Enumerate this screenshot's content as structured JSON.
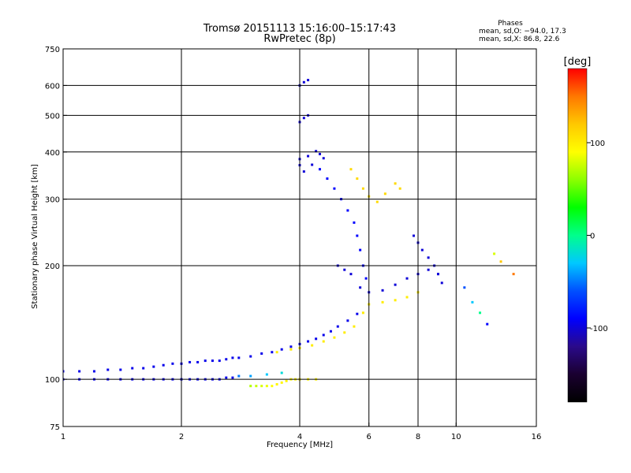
{
  "chart_data": {
    "type": "scatter",
    "title": "Tromsø 20151113 15:16:00–15:17:43",
    "subtitle": "RwPretec (8p)",
    "xlabel": "Frequency [MHz]",
    "ylabel": "Stationary phase Virtual Height [km]",
    "x_scale": "log",
    "y_scale": "log",
    "xlim": [
      1,
      16
    ],
    "ylim": [
      75,
      750
    ],
    "x_ticks": [
      1,
      2,
      4,
      6,
      8,
      10,
      16
    ],
    "x_tick_labels": [
      "1",
      "2",
      "4",
      "6",
      "8",
      "10",
      "16"
    ],
    "y_ticks": [
      75,
      100,
      200,
      300,
      400,
      500,
      600,
      750
    ],
    "y_tick_labels": [
      "75",
      "100",
      "200",
      "300",
      "400",
      "500",
      "600",
      "750"
    ],
    "x_gridlines": [
      2,
      4,
      6,
      8,
      10
    ],
    "y_gridlines": [
      100,
      200,
      300,
      400,
      500,
      600
    ],
    "grid": true,
    "info": {
      "header": "Phases",
      "line1": "mean, sd,O: −94.0, 17.3",
      "line2": "mean, sd,X:  86.8, 22.6"
    },
    "colorbar": {
      "label": "[deg]",
      "range": [
        -180,
        180
      ],
      "ticks": [
        100,
        0,
        -100
      ],
      "tick_labels": [
        "100",
        "0",
        "-100"
      ],
      "colormap": "rainbow",
      "stops": [
        "#000000",
        "#1a0030",
        "#2a0a8a",
        "#0000ff",
        "#0050ff",
        "#00c8ff",
        "#00ff8c",
        "#00ff00",
        "#8cff00",
        "#ffff00",
        "#ffc800",
        "#ff7800",
        "#ff0000"
      ]
    },
    "series": [
      {
        "points": [
          [
            1.0,
            105,
            -95
          ],
          [
            1.1,
            105,
            -95
          ],
          [
            1.2,
            105,
            -95
          ],
          [
            1.3,
            106,
            -95
          ],
          [
            1.4,
            106,
            -95
          ],
          [
            1.5,
            107,
            -95
          ],
          [
            1.6,
            107,
            -95
          ],
          [
            1.7,
            108,
            -95
          ],
          [
            1.8,
            109,
            -95
          ],
          [
            1.9,
            110,
            -95
          ],
          [
            2.0,
            110,
            -95
          ],
          [
            2.1,
            111,
            -95
          ],
          [
            2.2,
            111,
            -95
          ],
          [
            2.3,
            112,
            -95
          ],
          [
            2.4,
            112,
            -95
          ],
          [
            2.5,
            112,
            -95
          ],
          [
            2.6,
            113,
            -95
          ],
          [
            2.7,
            114,
            -95
          ],
          [
            2.8,
            114,
            -95
          ],
          [
            3.0,
            115,
            -95
          ],
          [
            3.2,
            117,
            -95
          ],
          [
            3.4,
            118,
            -95
          ],
          [
            3.6,
            120,
            -95
          ],
          [
            3.8,
            122,
            -95
          ],
          [
            4.0,
            124,
            -95
          ],
          [
            4.2,
            126,
            -95
          ],
          [
            4.4,
            128,
            -95
          ],
          [
            4.6,
            131,
            -95
          ],
          [
            4.8,
            134,
            -95
          ],
          [
            5.0,
            138,
            -95
          ],
          [
            5.3,
            143,
            -95
          ],
          [
            5.6,
            149,
            -95
          ]
        ]
      },
      {
        "points": [
          [
            1.0,
            100,
            -95
          ],
          [
            1.1,
            100,
            -95
          ],
          [
            1.2,
            100,
            -95
          ],
          [
            1.3,
            100,
            -95
          ],
          [
            1.4,
            100,
            -95
          ],
          [
            1.5,
            100,
            -95
          ],
          [
            1.6,
            100,
            -95
          ],
          [
            1.7,
            100,
            -95
          ],
          [
            1.8,
            100,
            -95
          ],
          [
            1.9,
            100,
            -95
          ],
          [
            2.0,
            100,
            -95
          ],
          [
            2.1,
            100,
            -95
          ],
          [
            2.2,
            100,
            -95
          ],
          [
            2.3,
            100,
            -95
          ],
          [
            2.4,
            100,
            -95
          ],
          [
            2.5,
            100,
            -95
          ],
          [
            2.6,
            101,
            -95
          ],
          [
            2.7,
            101,
            -95
          ]
        ]
      },
      {
        "points": [
          [
            2.8,
            102,
            -50
          ],
          [
            3.0,
            102,
            -40
          ],
          [
            3.3,
            103,
            -30
          ],
          [
            3.6,
            104,
            -20
          ]
        ]
      },
      {
        "points": [
          [
            3.0,
            96,
            70
          ],
          [
            3.1,
            96,
            75
          ],
          [
            3.2,
            96,
            80
          ],
          [
            3.3,
            96,
            85
          ],
          [
            3.4,
            96,
            90
          ],
          [
            3.5,
            97,
            95
          ],
          [
            3.6,
            98,
            95
          ],
          [
            3.7,
            99,
            95
          ],
          [
            3.8,
            100,
            95
          ],
          [
            3.9,
            100,
            95
          ],
          [
            4.0,
            100,
            95
          ],
          [
            4.2,
            100,
            95
          ],
          [
            4.4,
            100,
            95
          ]
        ]
      },
      {
        "points": [
          [
            3.5,
            118,
            100
          ],
          [
            3.8,
            120,
            100
          ],
          [
            4.0,
            121,
            100
          ],
          [
            4.3,
            123,
            100
          ],
          [
            4.6,
            126,
            100
          ],
          [
            4.9,
            129,
            100
          ],
          [
            5.2,
            133,
            100
          ],
          [
            5.5,
            138,
            100
          ],
          [
            5.8,
            150,
            100
          ],
          [
            6.0,
            158,
            100
          ],
          [
            6.5,
            160,
            100
          ],
          [
            7.0,
            162,
            100
          ],
          [
            7.5,
            165,
            100
          ],
          [
            8.0,
            170,
            100
          ]
        ]
      },
      {
        "points": [
          [
            4.0,
            369,
            -100
          ],
          [
            4.0,
            383,
            -100
          ],
          [
            4.1,
            355,
            -100
          ],
          [
            4.2,
            390,
            -100
          ],
          [
            4.3,
            370,
            -100
          ],
          [
            4.4,
            402,
            -100
          ],
          [
            4.5,
            395,
            -100
          ],
          [
            4.6,
            385,
            -100
          ]
        ]
      },
      {
        "points": [
          [
            4.0,
            480,
            -100
          ],
          [
            4.1,
            492,
            -100
          ],
          [
            4.2,
            500,
            -100
          ]
        ]
      },
      {
        "points": [
          [
            4.0,
            600,
            -100
          ],
          [
            4.1,
            612,
            -100
          ],
          [
            4.2,
            620,
            -100
          ]
        ]
      },
      {
        "points": [
          [
            4.5,
            360,
            -90
          ],
          [
            4.7,
            340,
            -90
          ],
          [
            4.9,
            320,
            -90
          ],
          [
            5.1,
            300,
            -90
          ],
          [
            5.3,
            280,
            -90
          ],
          [
            5.5,
            260,
            -90
          ],
          [
            5.6,
            240,
            -90
          ],
          [
            5.7,
            220,
            -90
          ],
          [
            5.8,
            200,
            -90
          ],
          [
            5.9,
            185,
            -90
          ]
        ]
      },
      {
        "points": [
          [
            5.0,
            200,
            -100
          ],
          [
            5.2,
            195,
            -100
          ],
          [
            5.4,
            190,
            -100
          ],
          [
            5.7,
            175,
            -100
          ],
          [
            6.0,
            170,
            -100
          ],
          [
            6.5,
            172,
            -100
          ],
          [
            7.0,
            178,
            -100
          ],
          [
            7.5,
            185,
            -100
          ],
          [
            8.0,
            190,
            -100
          ],
          [
            8.5,
            195,
            -100
          ],
          [
            9.0,
            190,
            -100
          ]
        ]
      },
      {
        "points": [
          [
            5.4,
            360,
            110
          ],
          [
            5.6,
            340,
            110
          ],
          [
            5.8,
            320,
            110
          ],
          [
            6.0,
            305,
            110
          ],
          [
            6.3,
            295,
            110
          ],
          [
            6.6,
            310,
            110
          ],
          [
            7.0,
            330,
            110
          ],
          [
            7.2,
            320,
            110
          ]
        ]
      },
      {
        "points": [
          [
            7.8,
            240,
            -100
          ],
          [
            8.0,
            230,
            -100
          ],
          [
            8.2,
            220,
            -100
          ],
          [
            8.5,
            210,
            -100
          ],
          [
            8.8,
            200,
            -100
          ],
          [
            9.0,
            190,
            -100
          ],
          [
            9.2,
            180,
            -100
          ]
        ]
      },
      {
        "points": [
          [
            10.5,
            175,
            -60
          ],
          [
            11.0,
            160,
            -30
          ],
          [
            11.5,
            150,
            0
          ],
          [
            12.0,
            140,
            -90
          ],
          [
            12.5,
            215,
            80
          ],
          [
            13.0,
            205,
            120
          ],
          [
            14.0,
            190,
            150
          ]
        ]
      }
    ]
  }
}
